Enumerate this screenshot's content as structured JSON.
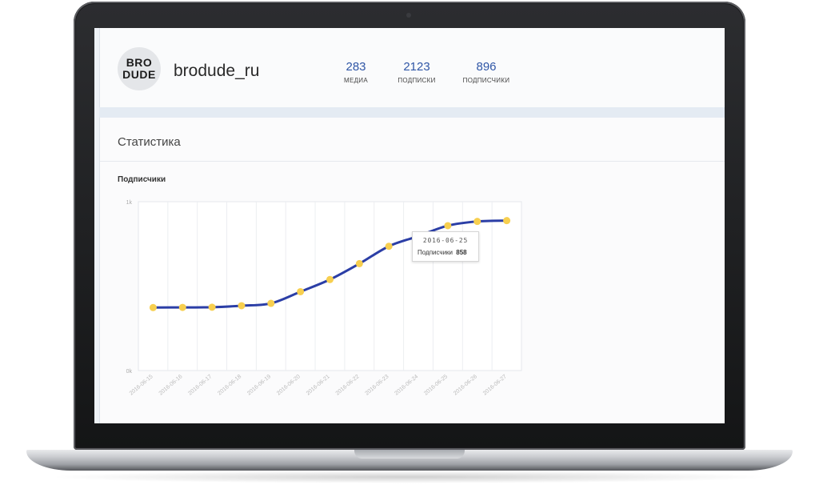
{
  "profile": {
    "avatar_line1": "BRO",
    "avatar_line2": "DUDE",
    "username": "brodude_ru",
    "stats": [
      {
        "value": "283",
        "label": "МЕДИА"
      },
      {
        "value": "2123",
        "label": "ПОДПИСКИ"
      },
      {
        "value": "896",
        "label": "ПОДПИСЧИКИ"
      }
    ]
  },
  "panel": {
    "title": "Статистика"
  },
  "chart_data": {
    "type": "line",
    "title": "Подписчики",
    "x": [
      "2016-06-15",
      "2016-06-16",
      "2016-06-17",
      "2016-06-18",
      "2016-06-19",
      "2016-06-20",
      "2016-06-21",
      "2016-06-22",
      "2016-06-23",
      "2016-06-24",
      "2016-06-25",
      "2016-06-26",
      "2016-06-27"
    ],
    "series": [
      {
        "name": "Подписчики",
        "values": [
          373,
          374,
          375,
          384,
          398,
          467,
          539,
          633,
          736,
          796,
          858,
          883,
          888
        ]
      }
    ],
    "ylim": [
      0,
      1000
    ],
    "yticks": [
      "0k",
      "1k"
    ],
    "grid": true,
    "colors": {
      "line": "#2b3ea6",
      "point": "#f7cf4f"
    }
  },
  "tooltip": {
    "date": "2016-06-25",
    "label": "Подписчики",
    "value": "858"
  }
}
